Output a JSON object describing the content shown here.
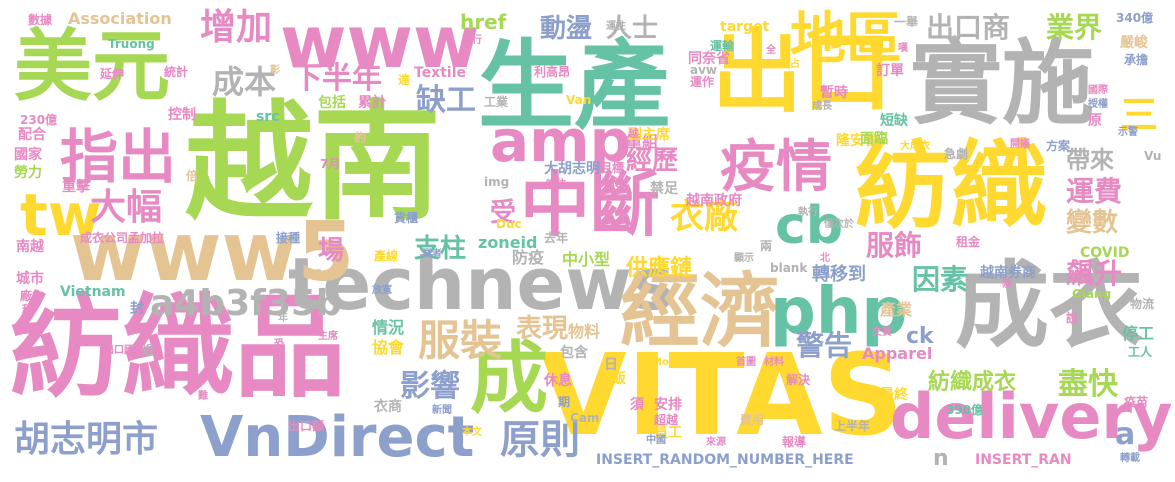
{
  "palette": {
    "green": "#a6d854",
    "teal": "#66c2a5",
    "orange": "#fc8d62",
    "blue": "#8da0cb",
    "pink": "#e78ac3",
    "yellow": "#ffd92f",
    "tan": "#e5c494",
    "gray": "#b3b3b3"
  },
  "words": [
    {
      "text": "越南",
      "color": "green"
    },
    {
      "text": "紡織品",
      "color": "pink"
    },
    {
      "text": "VITAS",
      "color": "yellow"
    },
    {
      "text": "生產",
      "color": "teal"
    },
    {
      "text": "實施",
      "color": "gray"
    },
    {
      "text": "紡織",
      "color": "yellow"
    },
    {
      "text": "出口",
      "color": "yellow"
    },
    {
      "text": "成衣",
      "color": "gray"
    },
    {
      "text": "technews",
      "color": "gray"
    },
    {
      "text": "經濟",
      "color": "tan"
    },
    {
      "text": "美元",
      "color": "green"
    },
    {
      "text": "www5",
      "color": "tan"
    },
    {
      "text": "www",
      "color": "pink"
    },
    {
      "text": "VnDirect",
      "color": "blue"
    },
    {
      "text": "delivery",
      "color": "pink"
    },
    {
      "text": "成",
      "color": "green"
    },
    {
      "text": "中斷",
      "color": "pink"
    },
    {
      "text": "php",
      "color": "teal"
    },
    {
      "text": "amp",
      "color": "pink"
    },
    {
      "text": "指出",
      "color": "pink"
    },
    {
      "text": "tw",
      "color": "yellow"
    },
    {
      "text": "地區",
      "color": "yellow"
    },
    {
      "text": "疫情",
      "color": "pink"
    },
    {
      "text": "cb",
      "color": "teal"
    },
    {
      "text": "胡志明市",
      "color": "blue"
    },
    {
      "text": "增加",
      "color": "pink"
    },
    {
      "text": "大幅",
      "color": "pink"
    },
    {
      "text": "服裝",
      "color": "tan"
    },
    {
      "text": "a4b3f35b",
      "color": "gray"
    },
    {
      "text": "原則",
      "color": "blue"
    },
    {
      "text": "出口商",
      "color": "gray"
    },
    {
      "text": "成本",
      "color": "gray"
    },
    {
      "text": "下半年",
      "color": "pink"
    },
    {
      "text": "缺工",
      "color": "blue"
    },
    {
      "text": "業界",
      "color": "green"
    },
    {
      "text": "衣廠",
      "color": "yellow"
    },
    {
      "text": "盡快",
      "color": "green"
    },
    {
      "text": "支柱",
      "color": "teal"
    },
    {
      "text": "服飾",
      "color": "pink"
    },
    {
      "text": "運費",
      "color": "pink"
    },
    {
      "text": "影響",
      "color": "blue"
    },
    {
      "text": "表現",
      "color": "tan"
    },
    {
      "text": "因素",
      "color": "teal"
    },
    {
      "text": "飆升",
      "color": "pink"
    },
    {
      "text": "警告",
      "color": "blue"
    },
    {
      "text": "動盪",
      "color": "blue"
    },
    {
      "text": "人士",
      "color": "gray"
    },
    {
      "text": "供應鏈",
      "color": "yellow"
    },
    {
      "text": "紡織成衣",
      "color": "green"
    },
    {
      "text": "經歷",
      "color": "pink"
    },
    {
      "text": "帶來",
      "color": "gray"
    },
    {
      "text": "變數",
      "color": "tan"
    },
    {
      "text": "場",
      "color": "pink"
    },
    {
      "text": "受",
      "color": "pink"
    },
    {
      "text": "三",
      "color": "yellow"
    },
    {
      "text": "ck",
      "color": "blue"
    },
    {
      "text": "a",
      "color": "blue"
    },
    {
      "text": "n",
      "color": "gray"
    },
    {
      "text": "href",
      "color": "green"
    },
    {
      "text": "Association",
      "color": "tan"
    },
    {
      "text": "zoneid",
      "color": "teal"
    },
    {
      "text": "重組",
      "color": "pink"
    },
    {
      "text": "中小型",
      "color": "green"
    },
    {
      "text": "轉移到",
      "color": "blue"
    },
    {
      "text": "越南券商",
      "color": "blue"
    },
    {
      "text": "物料",
      "color": "tan"
    },
    {
      "text": "協會",
      "color": "yellow"
    },
    {
      "text": "情況",
      "color": "teal"
    },
    {
      "text": "Apparel",
      "color": "pink"
    },
    {
      "text": "產業",
      "color": "tan"
    },
    {
      "text": "COVID",
      "color": "green"
    },
    {
      "text": "停工",
      "color": "teal"
    },
    {
      "text": "INSERT_RANDOM_NUMBER_HERE",
      "color": "blue"
    },
    {
      "text": "INSERT_RAN",
      "color": "pink"
    },
    {
      "text": "Textile",
      "color": "pink"
    },
    {
      "text": "Vietnam",
      "color": "teal"
    },
    {
      "text": "包括",
      "color": "green"
    },
    {
      "text": "累計",
      "color": "pink"
    },
    {
      "text": "成衣公司孟加拉",
      "color": "pink"
    },
    {
      "text": "防疫",
      "color": "gray"
    },
    {
      "text": "禁足",
      "color": "gray"
    },
    {
      "text": "越南政府",
      "color": "pink"
    },
    {
      "text": "大胡志明",
      "color": "blue"
    },
    {
      "text": "同奈省",
      "color": "pink"
    },
    {
      "text": "隆安省",
      "color": "yellow"
    },
    {
      "text": "短缺",
      "color": "teal"
    },
    {
      "text": "訂單",
      "color": "pink"
    },
    {
      "text": "暫時",
      "color": "pink"
    },
    {
      "text": "運輸",
      "color": "teal"
    },
    {
      "text": "副主席",
      "color": "yellow"
    },
    {
      "text": "嚴峻",
      "color": "tan"
    },
    {
      "text": "340億",
      "color": "blue"
    },
    {
      "text": "承擔",
      "color": "blue"
    },
    {
      "text": "工業",
      "color": "gray"
    },
    {
      "text": "利高昂",
      "color": "pink"
    },
    {
      "text": "運作",
      "color": "pink"
    },
    {
      "text": "avw",
      "color": "gray"
    },
    {
      "text": "Van",
      "color": "yellow"
    },
    {
      "text": "target",
      "color": "yellow"
    },
    {
      "text": "src",
      "color": "teal"
    },
    {
      "text": "img",
      "color": "gray"
    },
    {
      "text": "Truong",
      "color": "teal"
    },
    {
      "text": "統計",
      "color": "pink"
    },
    {
      "text": "控制",
      "color": "pink"
    },
    {
      "text": "230億",
      "color": "pink"
    },
    {
      "text": "配合",
      "color": "pink"
    },
    {
      "text": "國家",
      "color": "pink"
    },
    {
      "text": "勞力",
      "color": "green"
    },
    {
      "text": "重擊",
      "color": "pink"
    },
    {
      "text": "南越",
      "color": "pink"
    },
    {
      "text": "城市",
      "color": "pink"
    },
    {
      "text": "廠方",
      "color": "pink"
    },
    {
      "text": "稱",
      "color": "pink"
    },
    {
      "text": "封",
      "color": "blue"
    },
    {
      "text": "數據",
      "color": "pink"
    },
    {
      "text": "延伸",
      "color": "pink"
    },
    {
      "text": "貨櫃",
      "color": "blue"
    },
    {
      "text": "接種",
      "color": "blue"
    },
    {
      "text": "產線",
      "color": "yellow"
    },
    {
      "text": "業者",
      "color": "blue"
    },
    {
      "text": "Duc",
      "color": "yellow"
    },
    {
      "text": "去年",
      "color": "gray"
    },
    {
      "text": "執行",
      "color": "gray"
    },
    {
      "text": "僅次於",
      "color": "gray"
    },
    {
      "text": "租金",
      "color": "pink"
    },
    {
      "text": "兩",
      "color": "gray"
    },
    {
      "text": "顯示",
      "color": "gray"
    },
    {
      "text": "blank",
      "color": "gray"
    },
    {
      "text": "北",
      "color": "pink"
    },
    {
      "text": "Giang",
      "color": "green"
    },
    {
      "text": "物流",
      "color": "gray"
    },
    {
      "text": "說",
      "color": "pink"
    },
    {
      "text": "工人",
      "color": "teal"
    },
    {
      "text": "疫苗",
      "color": "pink"
    },
    {
      "text": "轉載",
      "color": "blue"
    },
    {
      "text": "390億",
      "color": "teal"
    },
    {
      "text": "最終",
      "color": "yellow"
    },
    {
      "text": "解決",
      "color": "pink"
    },
    {
      "text": "交貨",
      "color": "pink"
    },
    {
      "text": "首圖",
      "color": "pink"
    },
    {
      "text": "材料",
      "color": "pink"
    },
    {
      "text": "MoneyDJ",
      "color": "yellow"
    },
    {
      "text": "包含",
      "color": "gray"
    },
    {
      "text": "日",
      "color": "gray"
    },
    {
      "text": "吃飯",
      "color": "yellow"
    },
    {
      "text": "休息",
      "color": "pink"
    },
    {
      "text": "安排",
      "color": "pink"
    },
    {
      "text": "員工",
      "color": "yellow"
    },
    {
      "text": "費用",
      "color": "tan"
    },
    {
      "text": "報導",
      "color": "pink"
    },
    {
      "text": "上半年",
      "color": "gray"
    },
    {
      "text": "須",
      "color": "pink"
    },
    {
      "text": "期",
      "color": "blue"
    },
    {
      "text": "超越",
      "color": "pink"
    },
    {
      "text": "來源",
      "color": "pink"
    },
    {
      "text": "中國",
      "color": "blue"
    },
    {
      "text": "本文",
      "color": "yellow"
    },
    {
      "text": "出口額",
      "color": "pink"
    },
    {
      "text": "衣商",
      "color": "gray"
    },
    {
      "text": "新聞",
      "color": "blue"
    },
    {
      "text": "Cam",
      "color": "gray"
    },
    {
      "text": "出口國",
      "color": "pink"
    },
    {
      "text": "近",
      "color": "gray"
    },
    {
      "text": "主席",
      "color": "pink"
    },
    {
      "text": "年",
      "color": "gray"
    },
    {
      "text": "恐",
      "color": "pink"
    },
    {
      "text": "放寬",
      "color": "blue"
    },
    {
      "text": "面臨",
      "color": "green"
    },
    {
      "text": "大成衣",
      "color": "yellow"
    },
    {
      "text": "急劇",
      "color": "gray"
    },
    {
      "text": "開議",
      "color": "pink"
    },
    {
      "text": "方案",
      "color": "blue"
    },
    {
      "text": "Vu",
      "color": "gray"
    },
    {
      "text": "示警",
      "color": "blue"
    },
    {
      "text": "原",
      "color": "pink"
    },
    {
      "text": "授權",
      "color": "blue"
    },
    {
      "text": "國際",
      "color": "pink"
    },
    {
      "text": "成長",
      "color": "gray"
    },
    {
      "text": "全",
      "color": "pink"
    },
    {
      "text": "占",
      "color": "yellow"
    },
    {
      "text": "一舉",
      "color": "gray"
    },
    {
      "text": "嘆",
      "color": "pink"
    },
    {
      "text": "運往",
      "color": "gray"
    },
    {
      "text": "可行",
      "color": "pink"
    },
    {
      "text": "達",
      "color": "yellow"
    },
    {
      "text": "越",
      "color": "pink"
    },
    {
      "text": "約",
      "color": "tan"
    },
    {
      "text": "7月",
      "color": "pink"
    },
    {
      "text": "倍",
      "color": "tan"
    },
    {
      "text": "目標",
      "color": "pink"
    },
    {
      "text": "吃住",
      "color": "pink"
    },
    {
      "text": "大於",
      "color": "pink"
    },
    {
      "text": "禁",
      "color": "pink"
    },
    {
      "text": "難",
      "color": "pink"
    },
    {
      "text": "彰",
      "color": "tan"
    }
  ]
}
